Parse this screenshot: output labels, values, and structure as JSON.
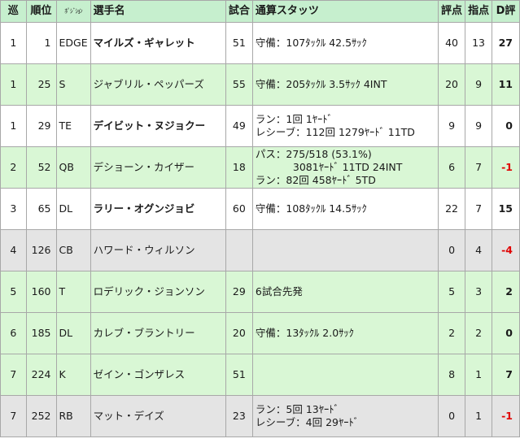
{
  "headers": {
    "round": "巡",
    "pick": "順位",
    "position": "ﾎﾟｼﾞｼｮﾝ",
    "name": "選手名",
    "games": "試合",
    "stats": "通算スタッツ",
    "score": "評点",
    "indicator": "指点",
    "d_score": "D評"
  },
  "colors": {
    "header_bg": "#c6efce",
    "row_green": "#d9f7d5",
    "row_gray": "#e4e4e4",
    "row_white": "#ffffff",
    "negative_text": "#e00000",
    "grid_line": "#a8a8a8"
  },
  "rows": [
    {
      "round": "1",
      "pick": "1",
      "position": "EDGE",
      "name": "マイルズ・ギャレット",
      "bold": true,
      "games": "51",
      "stats": [
        "守備：107ﾀｯｸﾙ 42.5ｻｯｸ"
      ],
      "score": "40",
      "indicator": "13",
      "d_score": "27",
      "bg": "white"
    },
    {
      "round": "1",
      "pick": "25",
      "position": "S",
      "name": "ジャブリル・ペッパーズ",
      "bold": false,
      "games": "55",
      "stats": [
        "守備：205ﾀｯｸﾙ 3.5ｻｯｸ 4INT"
      ],
      "score": "20",
      "indicator": "9",
      "d_score": "11",
      "bg": "green"
    },
    {
      "round": "1",
      "pick": "29",
      "position": "TE",
      "name": "デイビット・ヌジョクー",
      "bold": true,
      "games": "49",
      "stats": [
        "ラン：1回 1ﾔｰﾄﾞ",
        "レシーブ：112回 1279ﾔｰﾄﾞ 11TD"
      ],
      "score": "9",
      "indicator": "9",
      "d_score": "0",
      "bg": "white"
    },
    {
      "round": "2",
      "pick": "52",
      "position": "QB",
      "name": "デショーン・カイザー",
      "bold": false,
      "games": "18",
      "stats": [
        "パス：275/518 (53.1%)",
        "3081ﾔｰﾄﾞ 11TD 24INT",
        "ラン：82回 458ﾔｰﾄﾞ 5TD"
      ],
      "score": "6",
      "indicator": "7",
      "d_score": "-1",
      "bg": "green"
    },
    {
      "round": "3",
      "pick": "65",
      "position": "DL",
      "name": "ラリー・オグンジョビ",
      "bold": true,
      "games": "60",
      "stats": [
        "守備：108ﾀｯｸﾙ 14.5ｻｯｸ"
      ],
      "score": "22",
      "indicator": "7",
      "d_score": "15",
      "bg": "white"
    },
    {
      "round": "4",
      "pick": "126",
      "position": "CB",
      "name": "ハワード・ウィルソン",
      "bold": false,
      "games": "",
      "stats": [],
      "score": "0",
      "indicator": "4",
      "d_score": "-4",
      "bg": "gray"
    },
    {
      "round": "5",
      "pick": "160",
      "position": "T",
      "name": "ロデリック・ジョンソン",
      "bold": false,
      "games": "29",
      "stats": [
        "6試合先発"
      ],
      "score": "5",
      "indicator": "3",
      "d_score": "2",
      "bg": "green"
    },
    {
      "round": "6",
      "pick": "185",
      "position": "DL",
      "name": "カレブ・ブラントリー",
      "bold": false,
      "games": "20",
      "stats": [
        "守備：13ﾀｯｸﾙ 2.0ｻｯｸ"
      ],
      "score": "2",
      "indicator": "2",
      "d_score": "0",
      "bg": "green"
    },
    {
      "round": "7",
      "pick": "224",
      "position": "K",
      "name": "ゼイン・ゴンザレス",
      "bold": false,
      "games": "51",
      "stats": [],
      "score": "8",
      "indicator": "1",
      "d_score": "7",
      "bg": "green"
    },
    {
      "round": "7",
      "pick": "252",
      "position": "RB",
      "name": "マット・デイズ",
      "bold": false,
      "games": "23",
      "stats": [
        "ラン：5回 13ﾔｰﾄﾞ",
        "レシーブ：4回 29ﾔｰﾄﾞ"
      ],
      "score": "0",
      "indicator": "1",
      "d_score": "-1",
      "bg": "gray"
    }
  ]
}
